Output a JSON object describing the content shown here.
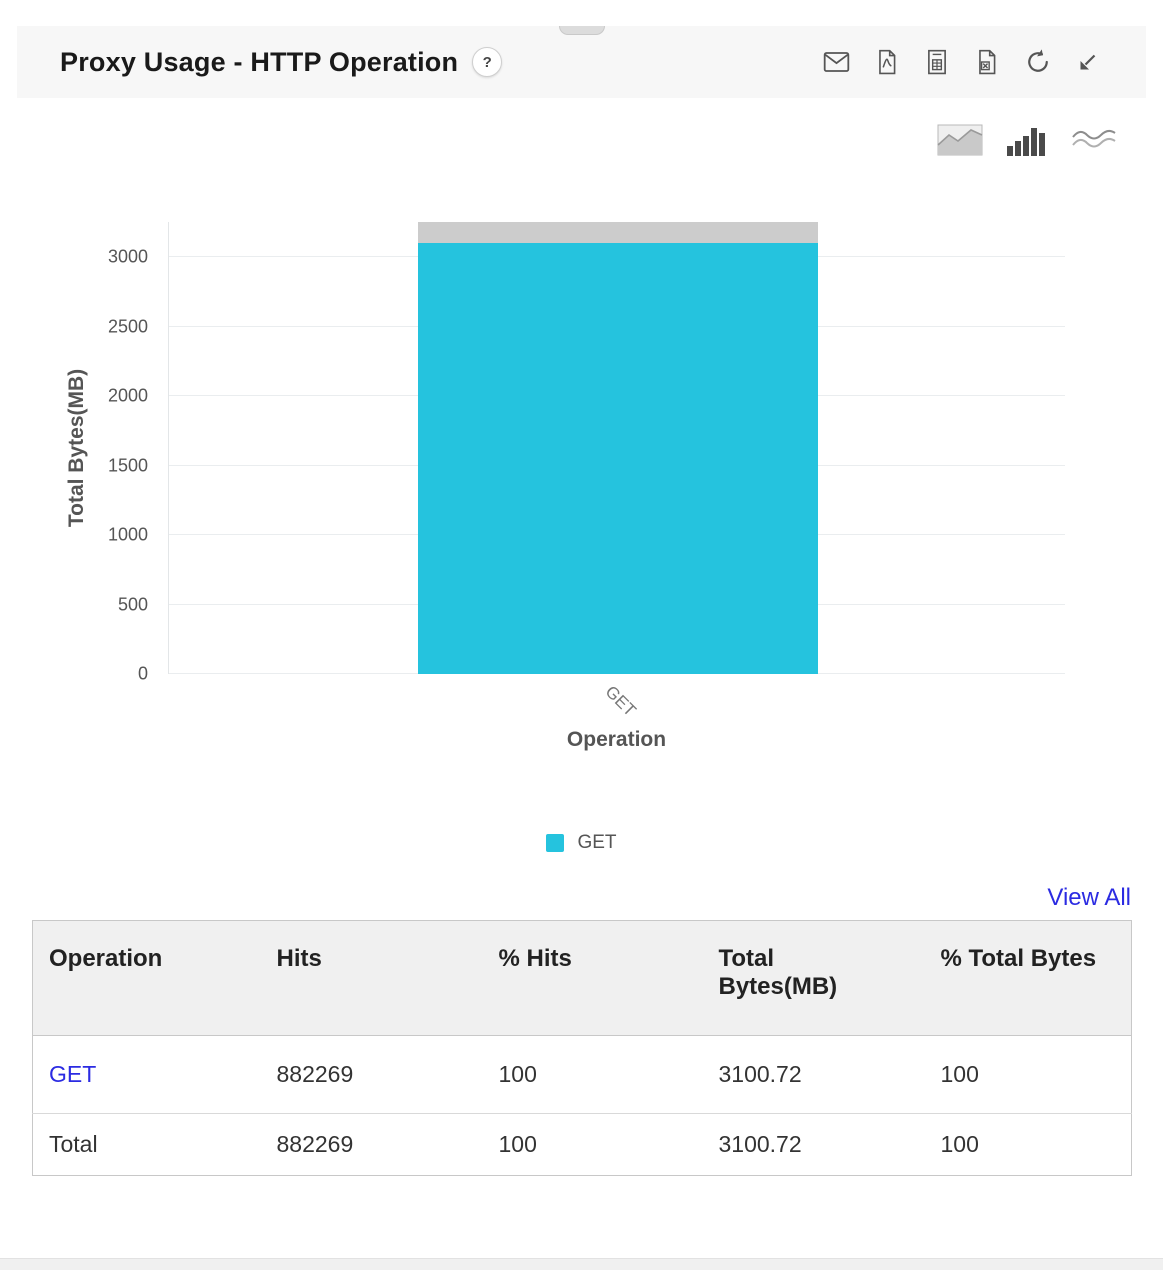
{
  "widget": {
    "title": "Proxy Usage - HTTP Operation",
    "help_label": "?"
  },
  "toolbar": {
    "icons": [
      "email",
      "pdf",
      "csv",
      "excel",
      "refresh",
      "resize"
    ]
  },
  "chart_toolbar": {
    "icons": [
      "area-chart",
      "bar-chart",
      "line-chart"
    ]
  },
  "chart_data": {
    "type": "bar",
    "title": "Proxy Usage - HTTP Operation",
    "categories": [
      "GET"
    ],
    "values": [
      3100.72
    ],
    "xlabel": "Operation",
    "ylabel": "Total Bytes(MB)",
    "ylim": [
      0,
      3252
    ],
    "yticks": [
      0,
      500,
      1000,
      1500,
      2000,
      2500,
      3000
    ],
    "grid": true,
    "legend": [
      "GET"
    ],
    "legend_position": "bottom",
    "bar_color": "#25c3de",
    "bar_cap_color": "#cccccc"
  },
  "links": {
    "view_all": "View All",
    "color": "#2b2be2"
  },
  "table": {
    "columns": [
      "Operation",
      "Hits",
      "% Hits",
      "Total Bytes(MB)",
      "% Total Bytes"
    ],
    "rows": [
      {
        "operation": "GET",
        "hits": "882269",
        "hits_pct": "100",
        "total_bytes": "3100.72",
        "total_bytes_pct": "100"
      },
      {
        "operation": "Total",
        "hits": "882269",
        "hits_pct": "100",
        "total_bytes": "3100.72",
        "total_bytes_pct": "100"
      }
    ]
  }
}
